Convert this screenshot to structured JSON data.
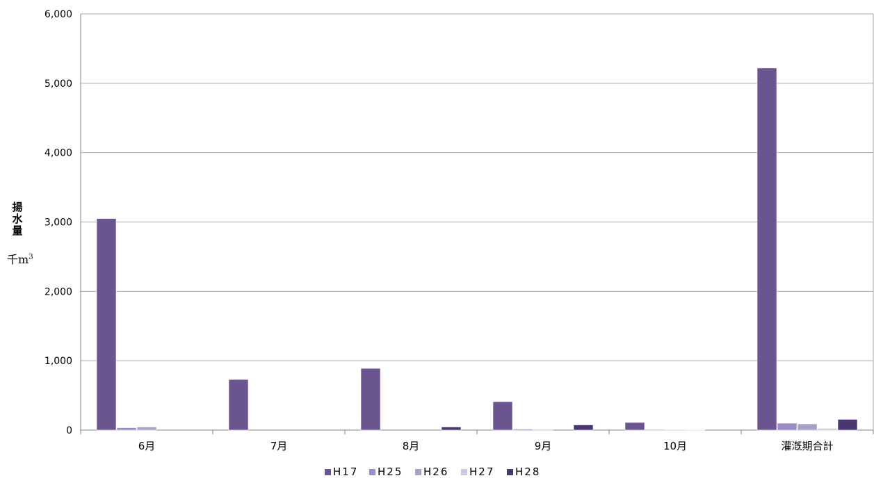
{
  "chart_data": {
    "type": "bar",
    "ylabel_vertical": "揚\n水\n量",
    "yunit_main": "千m",
    "yunit_exp": "3",
    "categories": [
      "6月",
      "7月",
      "8月",
      "9月",
      "10月",
      "灌漑期合計"
    ],
    "ylim": [
      0,
      6000
    ],
    "yticks": [
      0,
      1000,
      2000,
      3000,
      4000,
      5000,
      6000
    ],
    "ytick_labels": [
      "0",
      "1,000",
      "2,000",
      "3,000",
      "4,000",
      "5,000",
      "6,000"
    ],
    "grid": true,
    "legend_position": "bottom",
    "series": [
      {
        "name": "H17",
        "color": "#6b5590",
        "values": [
          3050,
          730,
          890,
          410,
          110,
          5220
        ]
      },
      {
        "name": "H25",
        "color": "#9b8cc4",
        "values": [
          35,
          0,
          0,
          15,
          10,
          100
        ]
      },
      {
        "name": "H26",
        "color": "#a9a1c4",
        "values": [
          45,
          0,
          0,
          10,
          8,
          90
        ]
      },
      {
        "name": "H27",
        "color": "#cdc8dc",
        "values": [
          0,
          0,
          0,
          0,
          5,
          25
        ]
      },
      {
        "name": "H28",
        "color": "#4a3670",
        "values": [
          0,
          0,
          45,
          75,
          0,
          155
        ]
      }
    ]
  }
}
